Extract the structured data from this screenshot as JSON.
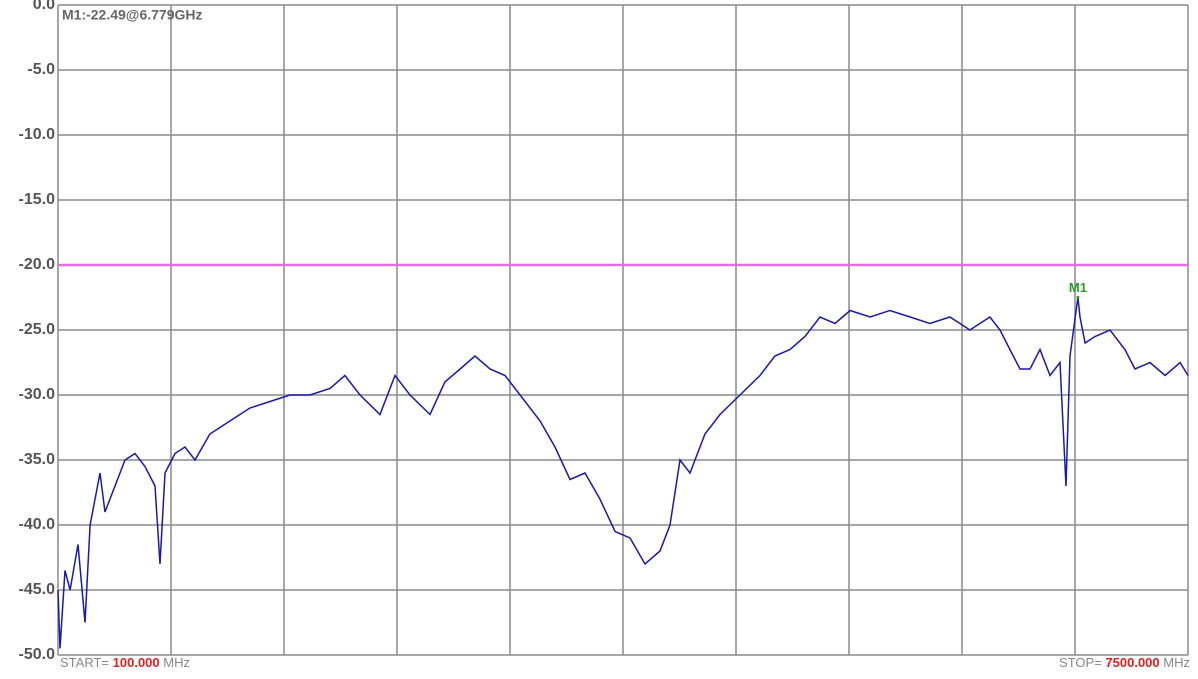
{
  "chart_data": {
    "type": "line",
    "annotation": "M1:-22.49@6.779GHz",
    "start_label": "START=",
    "start_value": "100.000",
    "start_unit": "MHz",
    "stop_label": "STOP=",
    "stop_value": "7500.000",
    "stop_unit": "MHz",
    "xlim": [
      100,
      7500
    ],
    "x_divisions": 10,
    "ylim": [
      -50,
      0
    ],
    "yticks": [
      {
        "value": 0,
        "label": "0.0"
      },
      {
        "value": -5,
        "label": "-5.0"
      },
      {
        "value": -10,
        "label": "-10.0"
      },
      {
        "value": -15,
        "label": "-15.0"
      },
      {
        "value": -20,
        "label": "-20.0"
      },
      {
        "value": -25,
        "label": "-25.0"
      },
      {
        "value": -30,
        "label": "-30.0"
      },
      {
        "value": -35,
        "label": "-35.0"
      },
      {
        "value": -40,
        "label": "-40.0"
      },
      {
        "value": -45,
        "label": "-45.0"
      },
      {
        "value": -50,
        "label": "-50.0"
      }
    ],
    "grid": true,
    "reference_line": -20,
    "reference_color": "#e070e0",
    "x": [
      100,
      113,
      146,
      179,
      231,
      277,
      310,
      375,
      408,
      473,
      539,
      604,
      670,
      735,
      768,
      801,
      866,
      932,
      997,
      1095,
      1226,
      1357,
      1488,
      1619,
      1750,
      1881,
      1979,
      2078,
      2209,
      2307,
      2405,
      2536,
      2634,
      2733,
      2831,
      2929,
      3027,
      3126,
      3257,
      3355,
      3453,
      3551,
      3649,
      3748,
      3846,
      3944,
      4042,
      4108,
      4173,
      4239,
      4337,
      4435,
      4566,
      4697,
      4795,
      4894,
      4992,
      5090,
      5188,
      5287,
      5418,
      5548,
      5680,
      5810,
      5941,
      6072,
      6203,
      6269,
      6334,
      6400,
      6465,
      6531,
      6596,
      6662,
      6701,
      6727,
      6779,
      6793,
      6826,
      6891,
      6989,
      7087,
      7153,
      7251,
      7350,
      7448,
      7500
    ],
    "series": [
      {
        "color": "#1a1aaa",
        "values": [
          -45,
          -49.5,
          -43.5,
          -45,
          -41.5,
          -47.5,
          -40,
          -36,
          -39,
          -37,
          -35,
          -34.5,
          -35.5,
          -37,
          -43,
          -36,
          -34.5,
          -34,
          -35,
          -33,
          -32,
          -31,
          -30.5,
          -30,
          -30,
          -29.5,
          -28.5,
          -30,
          -31.5,
          -28.5,
          -30,
          -31.5,
          -29,
          -28,
          -27,
          -28,
          -28.5,
          -30,
          -32,
          -34,
          -36.5,
          -36,
          -38,
          -40.5,
          -41,
          -43,
          -42,
          -40,
          -35,
          -36,
          -33,
          -31.5,
          -30,
          -28.5,
          -27,
          -26.5,
          -25.5,
          -24,
          -24.5,
          -23.5,
          -24,
          -23.5,
          -24,
          -24.5,
          -24,
          -25,
          -24,
          -25,
          -26.5,
          -28,
          -28,
          -26.5,
          -28.5,
          -27.5,
          -37,
          -27,
          -22.49,
          -24,
          -26,
          -25.5,
          -25,
          -26.5,
          -28,
          -27.5,
          -28.5,
          -27.5,
          -28.5
        ]
      }
    ],
    "markers": [
      {
        "label": "M1",
        "x": 6779,
        "value": -22.49,
        "color": "#2a9a2a"
      }
    ]
  }
}
